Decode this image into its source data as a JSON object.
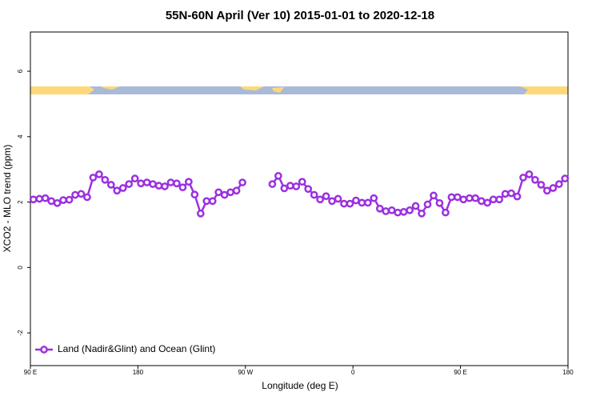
{
  "chart_data": {
    "type": "line",
    "title": "55N-60N April (Ver 10)   2015-01-01 to 2020-12-18",
    "xlabel": "Longitude (deg E)",
    "ylabel": "XCO2 - MLO trend (ppm)",
    "xlim": [
      90,
      540
    ],
    "ylim": [
      -3,
      7.2
    ],
    "xticks": [
      {
        "value": 90,
        "label": "90 E"
      },
      180,
      {
        "value": 270,
        "label": "90 W"
      },
      {
        "value": 360,
        "label": "0"
      },
      {
        "value": 450,
        "label": "90 E"
      },
      {
        "value": 540,
        "label": "180"
      }
    ],
    "yticks": [
      -2,
      0,
      2,
      4,
      6
    ],
    "legend": "bottom-left",
    "x": [
      92.5,
      97.5,
      102.5,
      107.5,
      112.5,
      117.5,
      122.5,
      127.5,
      132.5,
      137.5,
      142.5,
      147.5,
      152.5,
      157.5,
      162.5,
      167.5,
      172.5,
      177.5,
      182.5,
      187.5,
      192.5,
      197.5,
      202.5,
      207.5,
      212.5,
      217.5,
      222.5,
      227.5,
      232.5,
      237.5,
      242.5,
      247.5,
      252.5,
      257.5,
      262.5,
      267.5,
      272.5,
      277.5,
      282.5,
      287.5,
      292.5,
      297.5,
      302.5,
      307.5,
      312.5,
      317.5,
      322.5,
      327.5,
      332.5,
      337.5,
      342.5,
      347.5,
      352.5,
      357.5,
      362.5,
      367.5,
      372.5,
      377.5,
      382.5,
      387.5,
      392.5,
      397.5,
      402.5,
      407.5,
      412.5,
      417.5,
      422.5,
      427.5,
      432.5,
      437.5,
      442.5,
      447.5,
      452.5,
      457.5,
      462.5,
      467.5,
      472.5,
      477.5,
      482.5,
      487.5,
      492.5,
      497.5,
      502.5,
      507.5,
      512.5,
      517.5,
      522.5,
      527.5,
      532.5,
      537.5
    ],
    "series": [
      {
        "name": "Land (Nadir&Glint) and Ocean (Glint)",
        "color": "#9b30e0",
        "values": [
          2.08,
          2.1,
          2.12,
          2.03,
          1.97,
          2.06,
          2.07,
          2.22,
          2.25,
          2.15,
          2.75,
          2.85,
          2.68,
          2.53,
          2.35,
          2.43,
          2.55,
          2.72,
          2.57,
          2.6,
          2.55,
          2.5,
          2.48,
          2.6,
          2.57,
          2.45,
          2.62,
          2.23,
          1.65,
          2.03,
          2.03,
          2.3,
          2.22,
          2.3,
          2.35,
          2.6,
          null,
          null,
          null,
          null,
          2.55,
          2.8,
          2.42,
          2.5,
          2.48,
          2.62,
          2.4,
          2.22,
          2.08,
          2.18,
          2.03,
          2.1,
          1.95,
          1.95,
          2.05,
          1.98,
          1.98,
          2.12,
          1.8,
          1.72,
          1.75,
          1.68,
          1.7,
          1.75,
          1.88,
          1.65,
          1.93,
          2.2,
          1.97,
          1.68,
          2.15,
          2.15,
          2.08,
          2.12,
          2.12,
          2.03,
          1.98,
          2.08,
          2.08,
          2.25,
          2.27,
          2.17,
          2.75,
          2.85,
          2.68,
          2.53,
          2.35,
          2.43,
          2.55,
          2.72
        ]
      }
    ]
  }
}
